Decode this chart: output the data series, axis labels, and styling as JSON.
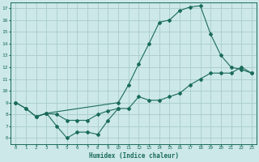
{
  "xlabel": "Humidex (Indice chaleur)",
  "bg_color": "#cce8e8",
  "grid_color": "#aacccc",
  "line_color": "#1a6b5a",
  "xlim": [
    -0.5,
    23.5
  ],
  "ylim": [
    5.5,
    17.5
  ],
  "xticks": [
    0,
    1,
    2,
    3,
    4,
    5,
    6,
    7,
    8,
    9,
    10,
    11,
    12,
    13,
    14,
    15,
    16,
    17,
    18,
    19,
    20,
    21,
    22,
    23
  ],
  "yticks": [
    6,
    7,
    8,
    9,
    10,
    11,
    12,
    13,
    14,
    15,
    16,
    17
  ],
  "line1_x": [
    0,
    1,
    2,
    3,
    10,
    11,
    12,
    13,
    14,
    15,
    16,
    17,
    18,
    19,
    20,
    21,
    22,
    23
  ],
  "line1_y": [
    9.0,
    8.5,
    7.8,
    8.1,
    9.0,
    10.5,
    12.3,
    14.0,
    15.8,
    16.0,
    16.8,
    17.1,
    17.2,
    14.8,
    13.0,
    12.0,
    11.8,
    11.5
  ],
  "line2_x": [
    0,
    1,
    2,
    3,
    4,
    5,
    6,
    7,
    8,
    9,
    10,
    11,
    12,
    13,
    14,
    15,
    16,
    17,
    18,
    19,
    20,
    21,
    22,
    23
  ],
  "line2_y": [
    9.0,
    8.5,
    7.8,
    8.1,
    8.0,
    7.5,
    7.5,
    7.5,
    8.0,
    8.3,
    8.5,
    8.5,
    9.5,
    9.2,
    9.2,
    9.5,
    9.8,
    10.5,
    11.0,
    11.5,
    11.5,
    11.5,
    12.0,
    11.5
  ],
  "line3_x": [
    2,
    3,
    4,
    5,
    6,
    7,
    8,
    9,
    10
  ],
  "line3_y": [
    7.8,
    8.1,
    7.0,
    6.0,
    6.5,
    6.5,
    6.3,
    7.5,
    8.5
  ]
}
